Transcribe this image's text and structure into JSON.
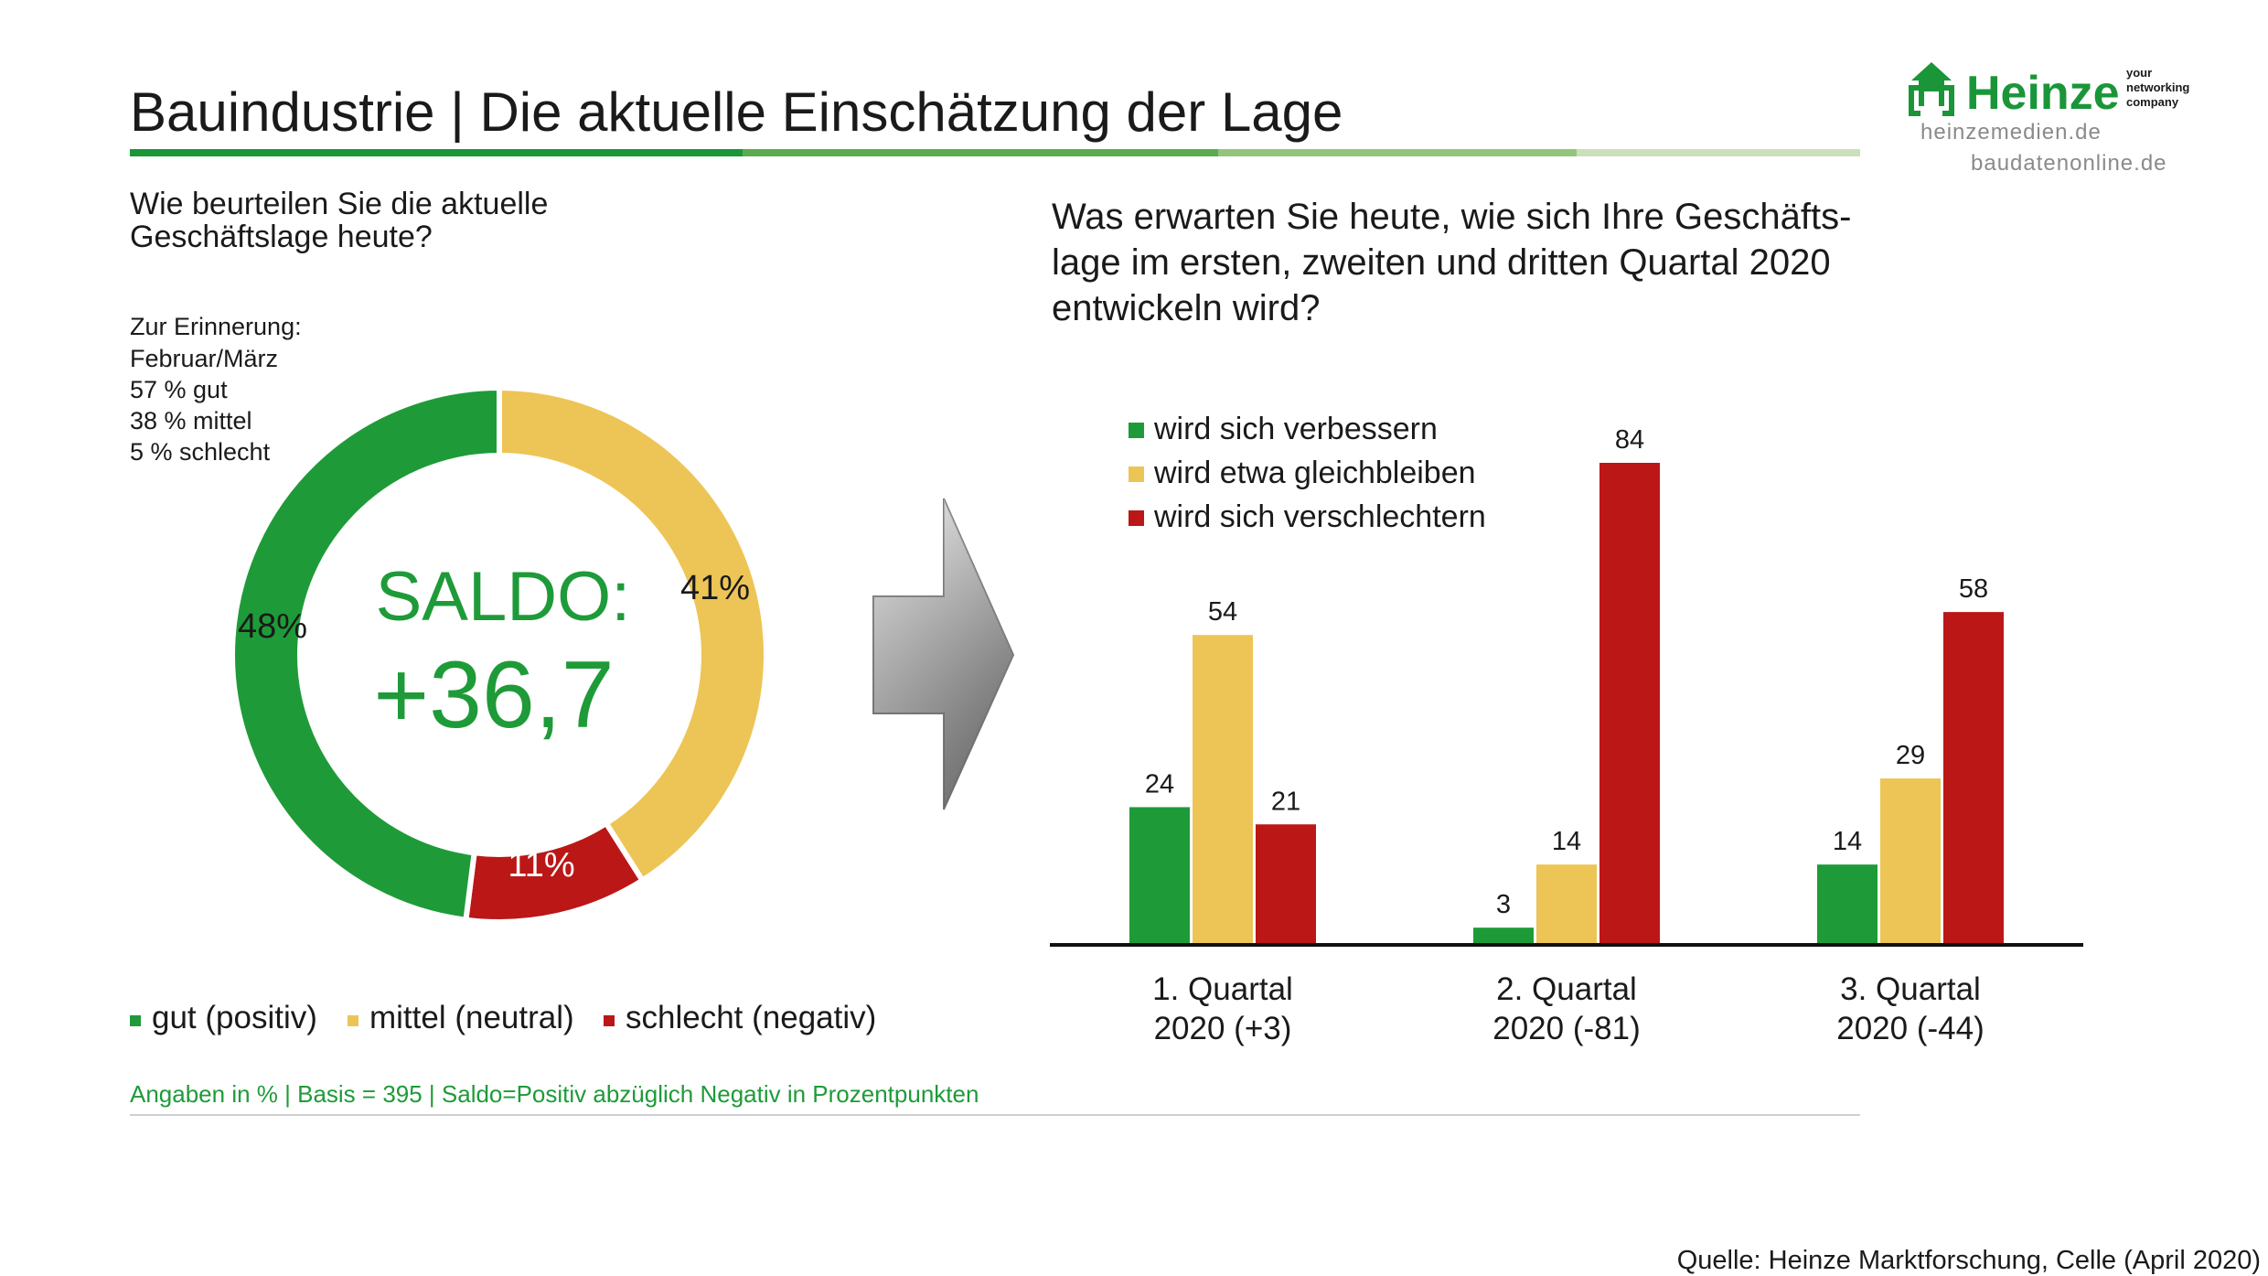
{
  "title": "Bauindustrie | Die aktuelle Einschätzung der Lage",
  "brand": {
    "logo_text": "Heinze",
    "tagline": [
      "your",
      "networking",
      "company"
    ],
    "links": [
      "heinzemedien.de",
      "baudatenonline.de"
    ],
    "color": "#1a9639"
  },
  "colors": {
    "positive": "#1e9b38",
    "neutral": "#edc556",
    "negative": "#bb1717",
    "saldo": "#1e9b38"
  },
  "left_question": [
    "Wie beurteilen Sie die aktuelle",
    "Geschäftslage heute?"
  ],
  "reminder": [
    "Zur Erinnerung:",
    "Februar/März",
    "57 % gut",
    "38 % mittel",
    "5 % schlecht"
  ],
  "saldo": {
    "label": "SALDO:",
    "value": "+36,7"
  },
  "right_question": [
    "Was erwarten Sie heute, wie sich Ihre Geschäfts-",
    "lage im ersten, zweiten und dritten Quartal 2020",
    "entwickeln wird?"
  ],
  "footnote": "Angaben in % | Basis = 395 | Saldo=Positiv abzüglich Negativ in Prozentpunkten",
  "source": "Quelle: Heinze Marktforschung, Celle (April 2020)",
  "chart_data": [
    {
      "type": "pie",
      "subtype": "donut",
      "labels": [
        "gut (positiv)",
        "mittel (neutral)",
        "schlecht (negativ)"
      ],
      "values": [
        48,
        41,
        11
      ],
      "value_labels": [
        "48%",
        "41%",
        "11%"
      ],
      "colors": [
        "#1e9b38",
        "#edc556",
        "#bb1717"
      ],
      "legend": "bottom"
    },
    {
      "type": "bar",
      "categories": [
        [
          "1. Quartal",
          "2020 (+3)"
        ],
        [
          "2. Quartal",
          "2020 (-81)"
        ],
        [
          "3. Quartal",
          "2020 (-44)"
        ]
      ],
      "series": [
        {
          "name": "wird sich verbessern",
          "values": [
            24,
            3,
            14
          ],
          "color": "#1e9b38"
        },
        {
          "name": "wird etwa gleichbleiben",
          "values": [
            54,
            14,
            29
          ],
          "color": "#edc556"
        },
        {
          "name": "wird sich verschlechtern",
          "values": [
            21,
            84,
            58
          ],
          "color": "#bb1717"
        }
      ],
      "ylim": [
        0,
        84
      ],
      "grid": false,
      "legend": "top-left"
    }
  ]
}
